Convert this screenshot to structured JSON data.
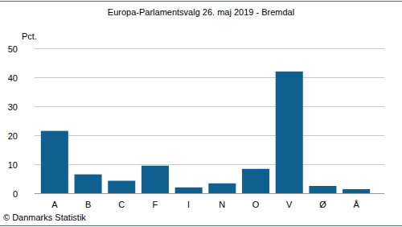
{
  "chart_data": {
    "type": "bar",
    "title": "Europa-Parlamentsvalg 26. maj 2019 - Bremdal",
    "ylabel": "Pct.",
    "source": "© Danmarks Statistik",
    "categories": [
      "A",
      "B",
      "C",
      "F",
      "I",
      "N",
      "O",
      "V",
      "Ø",
      "Å"
    ],
    "values": [
      21.5,
      6.5,
      4.3,
      9.5,
      2.0,
      3.4,
      8.4,
      42.0,
      2.5,
      1.4
    ],
    "color": "#0f5f8f",
    "ylim": [
      0,
      50
    ],
    "yticks": [
      0,
      10,
      20,
      30,
      40,
      50
    ],
    "grid": true
  }
}
